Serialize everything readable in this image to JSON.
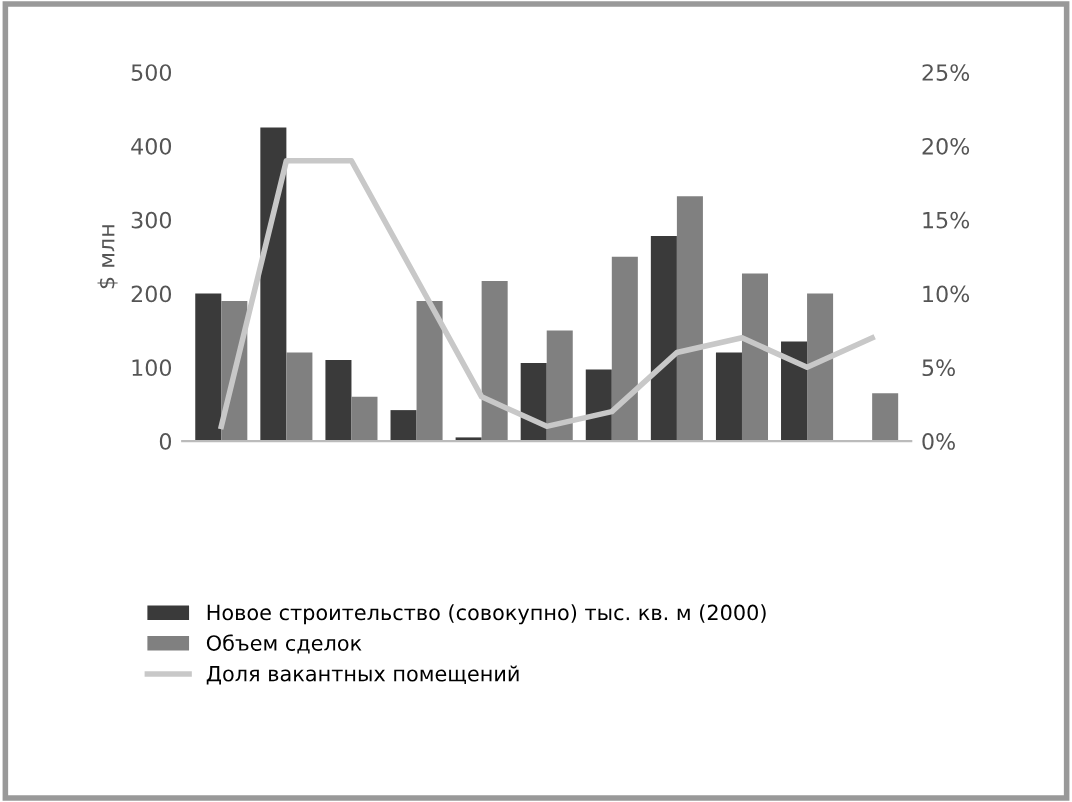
{
  "chart_data": {
    "type": "bar",
    "ylabel": "$ млн",
    "categories": [
      null,
      null,
      null,
      null,
      null,
      null,
      null,
      null,
      null,
      null,
      null
    ],
    "series": [
      {
        "name": "Новое строительство (совокупно) тыс. кв. м (2000)",
        "color": "#3a3a3a",
        "values": [
          200,
          425,
          110,
          42,
          5,
          106,
          97,
          278,
          120,
          135,
          null
        ]
      },
      {
        "name": "Объем сделок",
        "color": "#808080",
        "values": [
          190,
          120,
          60,
          190,
          217,
          150,
          250,
          332,
          227,
          200,
          65
        ]
      },
      {
        "name": "Доля вакантных помещений",
        "type": "line",
        "axis": "y2",
        "color": "#c8c8c8",
        "values": [
          1,
          19,
          19,
          11,
          3,
          1,
          2,
          6,
          7,
          5,
          7
        ]
      }
    ],
    "ylim": [
      0,
      500
    ],
    "yticks": [
      0,
      100,
      200,
      300,
      400,
      500
    ],
    "y2lim": [
      0,
      25
    ],
    "y2ticks": [
      {
        "value": 0,
        "label": "0%"
      },
      {
        "value": 5,
        "label": "5%"
      },
      {
        "value": 10,
        "label": "10%"
      },
      {
        "value": 15,
        "label": "15%"
      },
      {
        "value": 20,
        "label": "20%"
      },
      {
        "value": 25,
        "label": "25%"
      }
    ],
    "legend": "bottom",
    "grid": false
  }
}
